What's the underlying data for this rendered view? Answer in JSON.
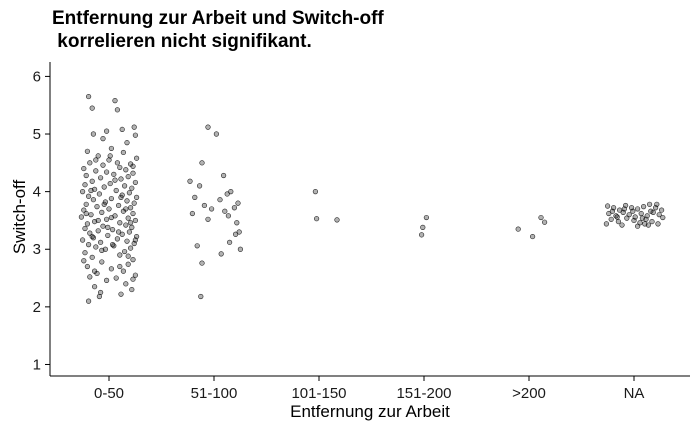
{
  "chart_data": {
    "type": "scatter",
    "title_lines": [
      "Entfernung zur Arbeit und Switch-off",
      " korrelieren nicht signifikant."
    ],
    "xlabel": "Entfernung zur Arbeit",
    "ylabel": "Switch-off",
    "categories": [
      "0-50",
      "51-100",
      "101-150",
      "151-200",
      ">200",
      "NA"
    ],
    "ylim": [
      0.8,
      6.25
    ],
    "yticks": [
      1,
      2,
      3,
      4,
      5,
      6
    ],
    "grid": false,
    "legend": "none",
    "point_color": "#000000",
    "series": [
      {
        "category": "0-50",
        "points": [
          [
            -0.17,
            5.65
          ],
          [
            0.05,
            5.58
          ],
          [
            -0.14,
            5.45
          ],
          [
            0.07,
            5.42
          ],
          [
            0.21,
            5.12
          ],
          [
            0.11,
            5.08
          ],
          [
            -0.02,
            5.05
          ],
          [
            -0.13,
            5.0
          ],
          [
            0.22,
            4.98
          ],
          [
            -0.05,
            4.92
          ],
          [
            0.15,
            4.85
          ],
          [
            0.02,
            4.75
          ],
          [
            -0.18,
            4.7
          ],
          [
            0.12,
            4.68
          ],
          [
            -0.09,
            4.62
          ],
          [
            0.23,
            4.58
          ],
          [
            0.0,
            4.55
          ],
          [
            -0.16,
            4.5
          ],
          [
            0.18,
            4.48
          ],
          [
            -0.05,
            4.46
          ],
          [
            0.09,
            4.42
          ],
          [
            -0.21,
            4.4
          ],
          [
            0.14,
            4.38
          ],
          [
            -0.11,
            4.36
          ],
          [
            0.2,
            4.32
          ],
          [
            0.04,
            4.3
          ],
          [
            -0.19,
            4.28
          ],
          [
            0.16,
            4.26
          ],
          [
            -0.07,
            4.24
          ],
          [
            0.1,
            4.22
          ],
          [
            -0.14,
            4.18
          ],
          [
            0.22,
            4.16
          ],
          [
            0.01,
            4.14
          ],
          [
            -0.2,
            4.12
          ],
          [
            0.13,
            4.1
          ],
          [
            -0.04,
            4.08
          ],
          [
            0.19,
            4.06
          ],
          [
            -0.12,
            4.04
          ],
          [
            0.06,
            4.02
          ],
          [
            -0.22,
            4.0
          ],
          [
            0.17,
            3.98
          ],
          [
            -0.08,
            3.96
          ],
          [
            0.11,
            3.94
          ],
          [
            -0.17,
            3.92
          ],
          [
            0.23,
            3.9
          ],
          [
            0.02,
            3.88
          ],
          [
            -0.13,
            3.86
          ],
          [
            0.15,
            3.84
          ],
          [
            -0.03,
            3.82
          ],
          [
            0.21,
            3.8
          ],
          [
            -0.19,
            3.78
          ],
          [
            0.08,
            3.76
          ],
          [
            -0.1,
            3.74
          ],
          [
            0.18,
            3.72
          ],
          [
            0.0,
            3.7
          ],
          [
            -0.21,
            3.68
          ],
          [
            0.12,
            3.66
          ],
          [
            -0.06,
            3.64
          ],
          [
            0.2,
            3.62
          ],
          [
            -0.15,
            3.6
          ],
          [
            0.05,
            3.58
          ],
          [
            -0.23,
            3.56
          ],
          [
            0.16,
            3.54
          ],
          [
            -0.02,
            3.52
          ],
          [
            0.22,
            3.5
          ],
          [
            -0.12,
            3.48
          ],
          [
            0.09,
            3.46
          ],
          [
            -0.18,
            3.44
          ],
          [
            0.14,
            3.42
          ],
          [
            -0.05,
            3.4
          ],
          [
            0.19,
            3.38
          ],
          [
            -0.2,
            3.36
          ],
          [
            0.03,
            3.34
          ],
          [
            -0.09,
            3.32
          ],
          [
            0.17,
            3.3
          ],
          [
            -0.16,
            3.28
          ],
          [
            0.11,
            3.26
          ],
          [
            -0.01,
            3.24
          ],
          [
            0.23,
            3.22
          ],
          [
            -0.13,
            3.2
          ],
          [
            0.07,
            3.18
          ],
          [
            -0.22,
            3.16
          ],
          [
            0.15,
            3.14
          ],
          [
            -0.07,
            3.12
          ],
          [
            0.21,
            3.1
          ],
          [
            -0.17,
            3.08
          ],
          [
            0.04,
            3.06
          ],
          [
            -0.11,
            3.04
          ],
          [
            0.18,
            3.02
          ],
          [
            -0.03,
            3.0
          ],
          [
            0.13,
            2.96
          ],
          [
            -0.2,
            2.94
          ],
          [
            0.09,
            2.9
          ],
          [
            -0.14,
            2.86
          ],
          [
            0.2,
            2.82
          ],
          [
            -0.06,
            2.78
          ],
          [
            0.16,
            2.74
          ],
          [
            -0.18,
            2.7
          ],
          [
            0.02,
            2.66
          ],
          [
            0.12,
            2.62
          ],
          [
            -0.1,
            2.58
          ],
          [
            0.22,
            2.55
          ],
          [
            -0.16,
            2.52
          ],
          [
            0.06,
            2.5
          ],
          [
            -0.02,
            2.46
          ],
          [
            0.14,
            2.4
          ],
          [
            -0.12,
            2.35
          ],
          [
            0.19,
            2.3
          ],
          [
            -0.07,
            2.25
          ],
          [
            0.1,
            2.22
          ],
          [
            -0.17,
            2.1
          ],
          [
            -0.08,
            2.18
          ],
          [
            0.01,
            4.62
          ],
          [
            -0.11,
            4.55
          ],
          [
            0.07,
            4.5
          ],
          [
            0.2,
            4.44
          ],
          [
            -0.02,
            4.34
          ],
          [
            0.05,
            4.2
          ],
          [
            -0.15,
            4.02
          ],
          [
            0.1,
            3.9
          ],
          [
            -0.04,
            3.78
          ],
          [
            0.14,
            3.7
          ],
          [
            -0.19,
            3.62
          ],
          [
            0.02,
            3.55
          ],
          [
            -0.09,
            3.5
          ],
          [
            0.18,
            3.46
          ],
          [
            -0.01,
            3.38
          ],
          [
            0.08,
            3.3
          ],
          [
            -0.14,
            3.22
          ],
          [
            0.22,
            3.16
          ],
          [
            0.03,
            3.08
          ],
          [
            -0.06,
            2.98
          ],
          [
            0.16,
            2.88
          ],
          [
            -0.21,
            2.8
          ],
          [
            0.09,
            2.7
          ],
          [
            -0.12,
            2.62
          ],
          [
            0.2,
            2.48
          ]
        ]
      },
      {
        "category": "51-100",
        "points": [
          [
            -0.05,
            5.12
          ],
          [
            0.02,
            5.0
          ],
          [
            -0.1,
            4.5
          ],
          [
            0.08,
            4.28
          ],
          [
            -0.2,
            4.18
          ],
          [
            -0.12,
            4.1
          ],
          [
            0.14,
            4.0
          ],
          [
            0.11,
            3.96
          ],
          [
            -0.16,
            3.9
          ],
          [
            0.05,
            3.86
          ],
          [
            0.2,
            3.8
          ],
          [
            -0.08,
            3.76
          ],
          [
            0.17,
            3.72
          ],
          [
            -0.02,
            3.7
          ],
          [
            0.09,
            3.66
          ],
          [
            -0.18,
            3.62
          ],
          [
            0.12,
            3.58
          ],
          [
            -0.05,
            3.52
          ],
          [
            0.19,
            3.46
          ],
          [
            0.21,
            3.3
          ],
          [
            0.18,
            3.26
          ],
          [
            0.13,
            3.12
          ],
          [
            -0.14,
            3.06
          ],
          [
            0.22,
            3.0
          ],
          [
            0.06,
            2.92
          ],
          [
            -0.1,
            2.76
          ],
          [
            -0.11,
            2.18
          ]
        ]
      },
      {
        "category": "101-150",
        "points": [
          [
            -0.03,
            4.0
          ],
          [
            -0.02,
            3.53
          ],
          [
            0.15,
            3.51
          ]
        ]
      },
      {
        "category": "151-200",
        "points": [
          [
            0.02,
            3.55
          ],
          [
            -0.01,
            3.38
          ],
          [
            -0.02,
            3.25
          ]
        ]
      },
      {
        "category": ">200",
        "points": [
          [
            0.1,
            3.55
          ],
          [
            0.13,
            3.47
          ],
          [
            -0.09,
            3.35
          ],
          [
            0.03,
            3.22
          ]
        ]
      },
      {
        "category": "NA",
        "points": [
          [
            -0.22,
            3.75
          ],
          [
            -0.17,
            3.72
          ],
          [
            -0.12,
            3.68
          ],
          [
            -0.07,
            3.76
          ],
          [
            -0.02,
            3.72
          ],
          [
            0.03,
            3.7
          ],
          [
            0.08,
            3.74
          ],
          [
            0.13,
            3.78
          ],
          [
            0.18,
            3.72
          ],
          [
            0.23,
            3.68
          ],
          [
            -0.21,
            3.62
          ],
          [
            -0.15,
            3.58
          ],
          [
            -0.09,
            3.64
          ],
          [
            -0.04,
            3.6
          ],
          [
            0.01,
            3.56
          ],
          [
            0.06,
            3.62
          ],
          [
            0.11,
            3.58
          ],
          [
            0.16,
            3.64
          ],
          [
            0.21,
            3.6
          ],
          [
            -0.19,
            3.52
          ],
          [
            -0.13,
            3.48
          ],
          [
            -0.06,
            3.54
          ],
          [
            0.0,
            3.5
          ],
          [
            0.05,
            3.46
          ],
          [
            0.1,
            3.52
          ],
          [
            0.15,
            3.48
          ],
          [
            0.2,
            3.44
          ],
          [
            -0.23,
            3.44
          ],
          [
            -0.1,
            3.42
          ],
          [
            0.03,
            3.4
          ],
          [
            0.12,
            3.42
          ],
          [
            -0.18,
            3.66
          ],
          [
            0.19,
            3.78
          ],
          [
            -0.01,
            3.66
          ],
          [
            0.24,
            3.55
          ],
          [
            -0.08,
            3.7
          ],
          [
            0.07,
            3.54
          ],
          [
            -0.14,
            3.56
          ],
          [
            0.14,
            3.66
          ],
          [
            0.09,
            3.44
          ]
        ]
      }
    ]
  }
}
